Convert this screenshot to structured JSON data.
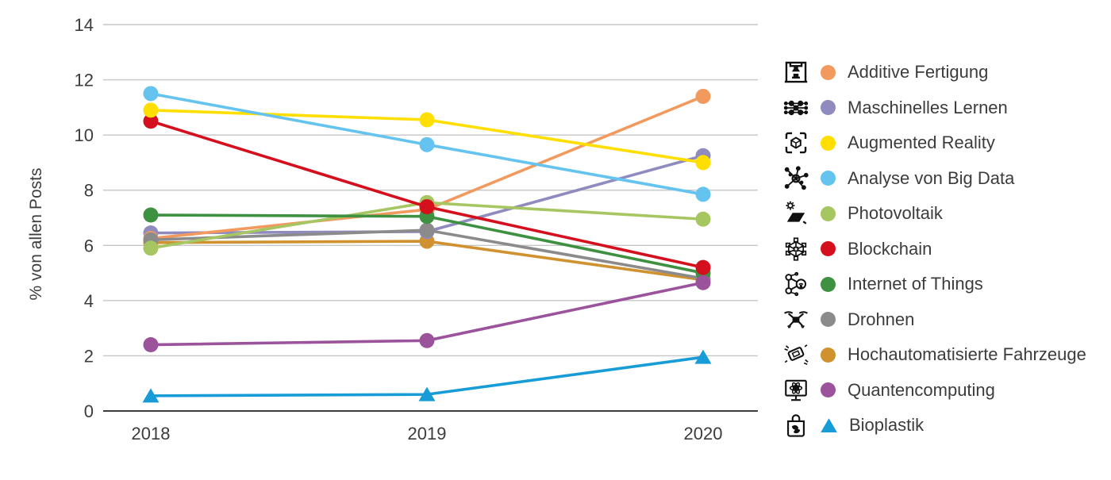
{
  "chart_data": {
    "type": "line",
    "title": "",
    "xlabel": "",
    "ylabel": "% von allen Posts",
    "categories": [
      "2018",
      "2019",
      "2020"
    ],
    "ylim": [
      0,
      14
    ],
    "ytick_step": 2,
    "grid": true,
    "legend_position": "right",
    "series": [
      {
        "name": "Additive Fertigung",
        "icon": "3d-printer-icon",
        "color": "#F29A5E",
        "marker": "circle",
        "values": [
          6.25,
          7.3,
          11.4
        ]
      },
      {
        "name": "Maschinelles Lernen",
        "icon": "neural-network-icon",
        "color": "#8F8BBF",
        "marker": "circle",
        "values": [
          6.45,
          6.5,
          9.25
        ]
      },
      {
        "name": "Augmented Reality",
        "icon": "ar-cube-icon",
        "color": "#FFDE00",
        "marker": "circle",
        "values": [
          10.9,
          10.55,
          9.0
        ]
      },
      {
        "name": "Analyse von Big Data",
        "icon": "data-analysis-icon",
        "color": "#64C3EF",
        "marker": "circle",
        "values": [
          11.5,
          9.65,
          7.85
        ]
      },
      {
        "name": "Photovoltaik",
        "icon": "solar-panel-icon",
        "color": "#A5C661",
        "marker": "circle",
        "values": [
          5.9,
          7.55,
          6.95
        ]
      },
      {
        "name": "Blockchain",
        "icon": "blockchain-icon",
        "color": "#D5101E",
        "marker": "circle",
        "values": [
          10.5,
          7.4,
          5.2
        ]
      },
      {
        "name": "Internet of Things",
        "icon": "iot-icon",
        "color": "#3E9141",
        "marker": "circle",
        "values": [
          7.1,
          7.05,
          5.0
        ]
      },
      {
        "name": "Drohnen",
        "icon": "drone-icon",
        "color": "#8B8B8B",
        "marker": "circle",
        "values": [
          6.2,
          6.55,
          4.8
        ]
      },
      {
        "name": "Hochautomatisierte Fahrzeuge",
        "icon": "automated-vehicle-icon",
        "color": "#D0922F",
        "marker": "circle",
        "values": [
          6.1,
          6.15,
          4.75
        ]
      },
      {
        "name": "Quantencomputing",
        "icon": "quantum-computing-icon",
        "color": "#9B539B",
        "marker": "circle",
        "values": [
          2.4,
          2.55,
          4.65
        ]
      },
      {
        "name": "Bioplastik",
        "icon": "bioplastic-icon",
        "color": "#189CD8",
        "marker": "triangle",
        "values": [
          0.55,
          0.6,
          1.95
        ]
      }
    ],
    "draw_order": [
      "Hochautomatisierte Fahrzeuge",
      "Maschinelles Lernen",
      "Additive Fertigung",
      "Drohnen",
      "Photovoltaik",
      "Internet of Things",
      "Blockchain",
      "Augmented Reality",
      "Analyse von Big Data",
      "Quantencomputing",
      "Bioplastik"
    ],
    "colors": {
      "gridline": "#C6C6C6",
      "axis_line": "#3C3C3B",
      "text": "#3C3C3B",
      "background": "#FFFFFF"
    }
  }
}
